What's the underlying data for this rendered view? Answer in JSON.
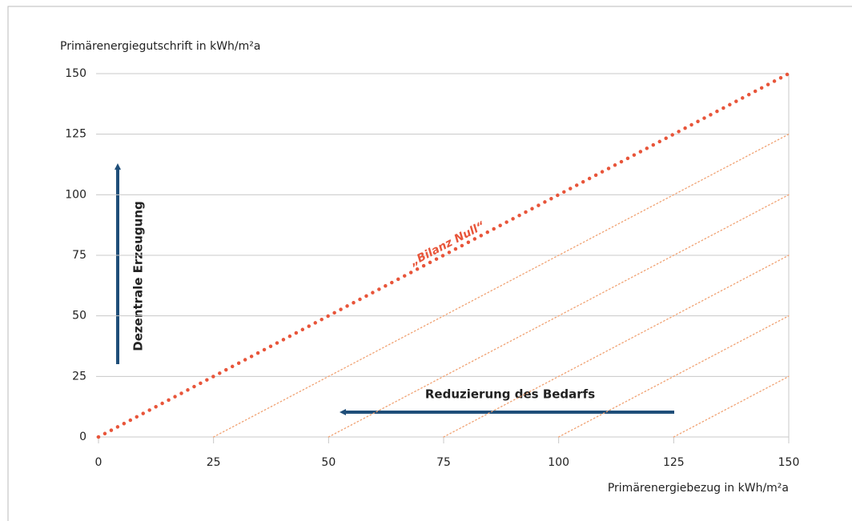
{
  "chart_data": {
    "type": "line",
    "ylabel": "Primärenergiegutschrift in kWh/m²a",
    "xlabel": "Primärenergiebezug in kWh/m²a",
    "xlim": [
      0,
      150
    ],
    "xticks": [
      0,
      25,
      50,
      75,
      100,
      125,
      150
    ],
    "ylim": [
      0,
      150
    ],
    "yticks": [
      0,
      25,
      50,
      75,
      100,
      125,
      150
    ],
    "grid": true,
    "series": [
      {
        "name": "„Bilanz Null“",
        "color": "#e8553a",
        "x": [
          0,
          150
        ],
        "values": [
          0,
          150
        ]
      },
      {
        "color": "#f0a070",
        "x": [
          25,
          150
        ],
        "values": [
          0,
          125
        ]
      },
      {
        "color": "#f0a070",
        "x": [
          50,
          150
        ],
        "values": [
          0,
          100
        ]
      },
      {
        "color": "#f0a070",
        "x": [
          75,
          150
        ],
        "values": [
          0,
          75
        ]
      },
      {
        "color": "#f0a070",
        "x": [
          100,
          150
        ],
        "values": [
          0,
          50
        ]
      },
      {
        "color": "#f0a070",
        "x": [
          125,
          150
        ],
        "values": [
          0,
          25
        ]
      }
    ],
    "annotations": [
      "Dezentrale Erzeugung",
      "Reduzierung des Bedarfs"
    ]
  }
}
